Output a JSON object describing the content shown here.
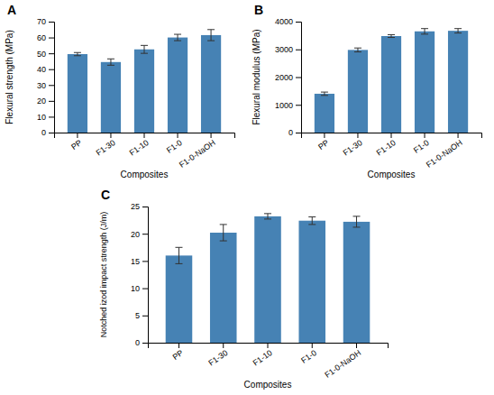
{
  "chart_data": [
    {
      "type": "bar",
      "title": "A",
      "categories": [
        "PP",
        "F1-30",
        "F1-10",
        "F1-0",
        "F1-0-NaOH"
      ],
      "values": [
        49.5,
        44.5,
        52.5,
        60.0,
        61.5
      ],
      "errors": [
        1.0,
        2.0,
        2.5,
        2.0,
        3.5
      ],
      "ylabel": "Flexural strength (MPa)",
      "xlabel": "Composites",
      "ylim": [
        0,
        70
      ],
      "yticks": [
        0,
        10,
        20,
        30,
        40,
        50,
        60,
        70
      ]
    },
    {
      "type": "bar",
      "title": "B",
      "categories": [
        "PP",
        "F1-30",
        "F1-10",
        "F1-0",
        "F1-0-NaOH"
      ],
      "values": [
        1400,
        2980,
        3480,
        3650,
        3670
      ],
      "errors": [
        60,
        70,
        50,
        100,
        80
      ],
      "ylabel": "Flexural modulus (MPa)",
      "xlabel": "Composites",
      "ylim": [
        0,
        4000
      ],
      "yticks": [
        0,
        1000,
        2000,
        3000,
        4000
      ]
    },
    {
      "type": "bar",
      "title": "C",
      "categories": [
        "PP",
        "F1-30",
        "F1-10",
        "F1-0",
        "F1-0-NaOH"
      ],
      "values": [
        16.0,
        20.2,
        23.2,
        22.4,
        22.2
      ],
      "errors": [
        1.5,
        1.5,
        0.5,
        0.7,
        1.0
      ],
      "ylabel": "Notched izod impact strength (J/m)",
      "xlabel": "Composites",
      "ylim": [
        0,
        25
      ],
      "yticks": [
        0,
        5,
        10,
        15,
        20,
        25
      ]
    }
  ]
}
